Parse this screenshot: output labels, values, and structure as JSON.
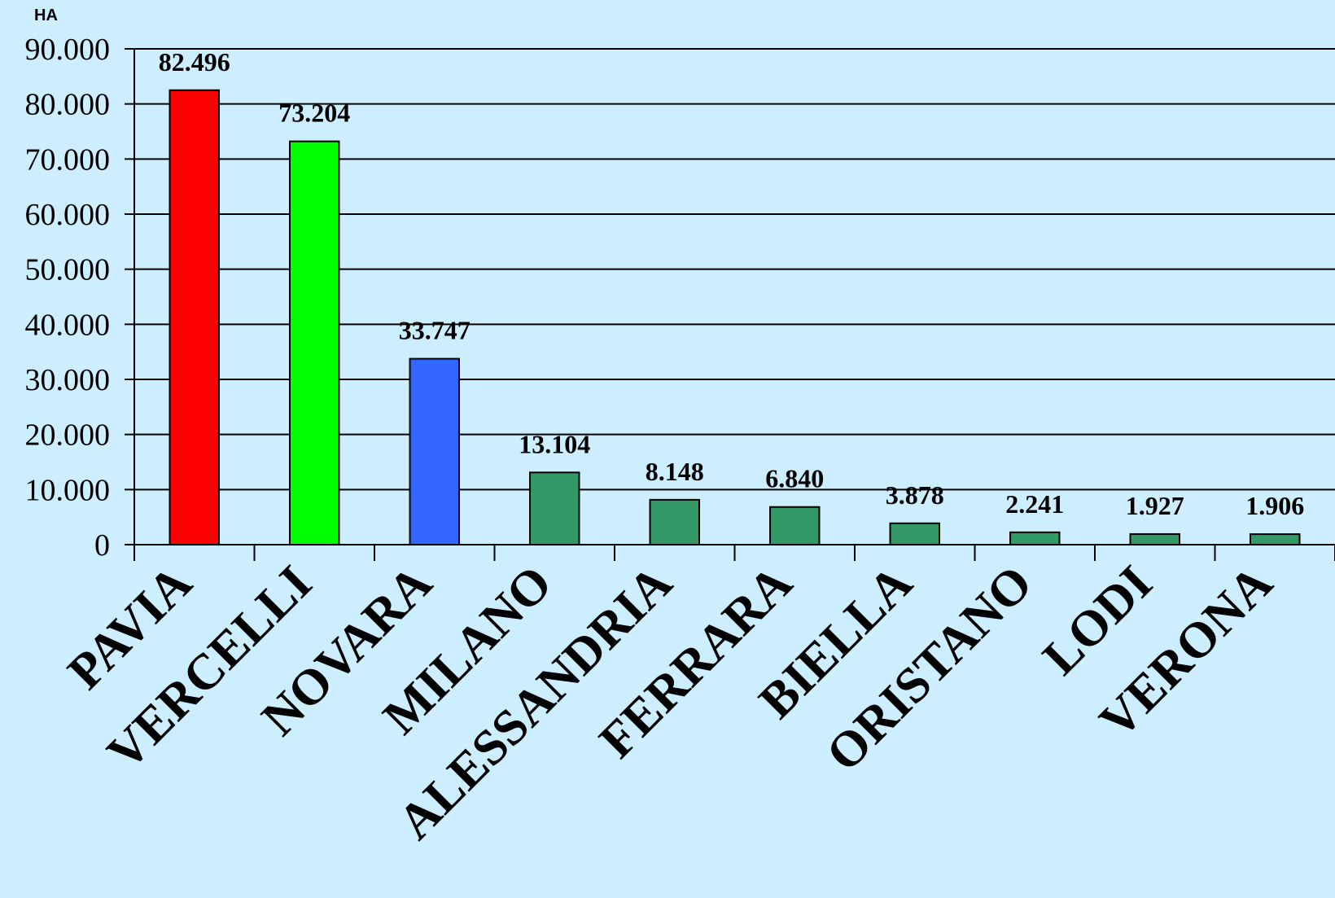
{
  "chart_data": {
    "type": "bar",
    "y_unit": "HA",
    "categories": [
      "PAVIA",
      "VERCELLI",
      "NOVARA",
      "MILANO",
      "ALESSANDRIA",
      "FERRARA",
      "BIELLA",
      "ORISTANO",
      "LODI",
      "VERONA"
    ],
    "values": [
      82496,
      73204,
      33747,
      13104,
      8148,
      6840,
      3878,
      2241,
      1927,
      1906
    ],
    "value_labels": [
      "82.496",
      "73.204",
      "33.747",
      "13.104",
      "8.148",
      "6.840",
      "3.878",
      "2.241",
      "1.927",
      "1.906"
    ],
    "ylim": [
      0,
      90000
    ],
    "yticks": [
      0,
      10000,
      20000,
      30000,
      40000,
      50000,
      60000,
      70000,
      80000,
      90000
    ],
    "ytick_labels": [
      "0",
      "10.000",
      "20.000",
      "30.000",
      "40.000",
      "50.000",
      "60.000",
      "70.000",
      "80.000",
      "90.000"
    ],
    "grid": true,
    "legend": "none",
    "bar_colors": [
      "#ff0000",
      "#00ff00",
      "#3366ff",
      "#339966",
      "#339966",
      "#339966",
      "#339966",
      "#339966",
      "#339966",
      "#339966"
    ],
    "background_color": "#cceeff"
  }
}
